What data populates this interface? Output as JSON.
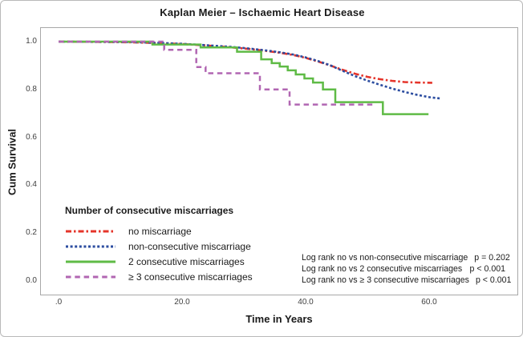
{
  "chart_data": {
    "type": "line",
    "title": "Kaplan Meier – Ischaemic Heart Disease",
    "xlabel": "Time in Years",
    "ylabel": "Cum Survival",
    "x_ticks": [
      {
        "label": ".0",
        "value": 0
      },
      {
        "label": "20.0",
        "value": 20
      },
      {
        "label": "40.0",
        "value": 40
      },
      {
        "label": "60.0",
        "value": 60
      }
    ],
    "y_ticks": [
      {
        "label": "1.0",
        "value": 1.0
      },
      {
        "label": "0.8",
        "value": 0.8
      },
      {
        "label": "0.6",
        "value": 0.6
      },
      {
        "label": "0.4",
        "value": 0.4
      },
      {
        "label": "0.2",
        "value": 0.2
      },
      {
        "label": "0.0",
        "value": 0.0
      }
    ],
    "xlim": [
      0,
      70
    ],
    "ylim": [
      0,
      1.0
    ],
    "grid": false,
    "legend_position": "lower-left-inside",
    "legend_title": "Number of consecutive miscarriages",
    "series": [
      {
        "name": "no miscarriage",
        "color": "#e5342a",
        "style": "dashdot",
        "curve": "smooth",
        "points": [
          [
            0,
            1.0
          ],
          [
            6,
            0.999
          ],
          [
            12,
            0.997
          ],
          [
            16,
            0.994
          ],
          [
            20,
            0.99
          ],
          [
            24,
            0.984
          ],
          [
            28,
            0.976
          ],
          [
            31,
            0.969
          ],
          [
            34,
            0.96
          ],
          [
            36,
            0.953
          ],
          [
            38,
            0.944
          ],
          [
            40,
            0.932
          ],
          [
            42,
            0.917
          ],
          [
            44,
            0.9
          ],
          [
            46,
            0.882
          ],
          [
            48,
            0.866
          ],
          [
            50,
            0.853
          ],
          [
            52,
            0.843
          ],
          [
            54,
            0.836
          ],
          [
            56,
            0.831
          ],
          [
            58,
            0.829
          ],
          [
            60.5,
            0.828
          ]
        ]
      },
      {
        "name": "non-consecutive miscarriage",
        "color": "#2c4da0",
        "style": "dotted",
        "curve": "smooth",
        "points": [
          [
            0,
            1.0
          ],
          [
            6,
            0.999
          ],
          [
            12,
            0.998
          ],
          [
            16,
            0.995
          ],
          [
            20,
            0.991
          ],
          [
            24,
            0.985
          ],
          [
            28,
            0.978
          ],
          [
            31,
            0.971
          ],
          [
            34,
            0.962
          ],
          [
            36,
            0.955
          ],
          [
            38,
            0.946
          ],
          [
            40,
            0.934
          ],
          [
            42,
            0.919
          ],
          [
            44,
            0.901
          ],
          [
            46,
            0.878
          ],
          [
            48,
            0.856
          ],
          [
            50,
            0.837
          ],
          [
            52,
            0.82
          ],
          [
            54,
            0.804
          ],
          [
            56,
            0.79
          ],
          [
            58,
            0.778
          ],
          [
            60,
            0.768
          ],
          [
            62,
            0.762
          ]
        ]
      },
      {
        "name": "2 consecutive miscarriages",
        "color": "#5fbb46",
        "style": "solid",
        "curve": "step",
        "points": [
          [
            0,
            1.0
          ],
          [
            15.2,
            0.988
          ],
          [
            23,
            0.976
          ],
          [
            28.9,
            0.958
          ],
          [
            32.8,
            0.926
          ],
          [
            34.5,
            0.91
          ],
          [
            35.8,
            0.896
          ],
          [
            37.1,
            0.88
          ],
          [
            38.4,
            0.863
          ],
          [
            39.8,
            0.846
          ],
          [
            41.2,
            0.829
          ],
          [
            42.8,
            0.8
          ],
          [
            44.8,
            0.747
          ],
          [
            52.5,
            0.697
          ],
          [
            59.9,
            0.697
          ]
        ]
      },
      {
        "name": "≥ 3 consecutive miscarriages",
        "color": "#b166b2",
        "style": "dashed",
        "curve": "step",
        "points": [
          [
            0,
            1.0
          ],
          [
            17.1,
            0.966
          ],
          [
            22.3,
            0.894
          ],
          [
            23.8,
            0.868
          ],
          [
            32.6,
            0.8
          ],
          [
            37.4,
            0.737
          ],
          [
            50.8,
            0.737
          ]
        ]
      }
    ],
    "annotations": [
      {
        "label": "Log rank no vs non-consecutive miscarriage",
        "p": "p = 0.202"
      },
      {
        "label": "Log rank no vs 2 consecutive miscarriages",
        "p": "p < 0.001"
      },
      {
        "label": "Log rank no vs ≥ 3 consecutive miscarriages",
        "p": "p < 0.001"
      }
    ]
  }
}
